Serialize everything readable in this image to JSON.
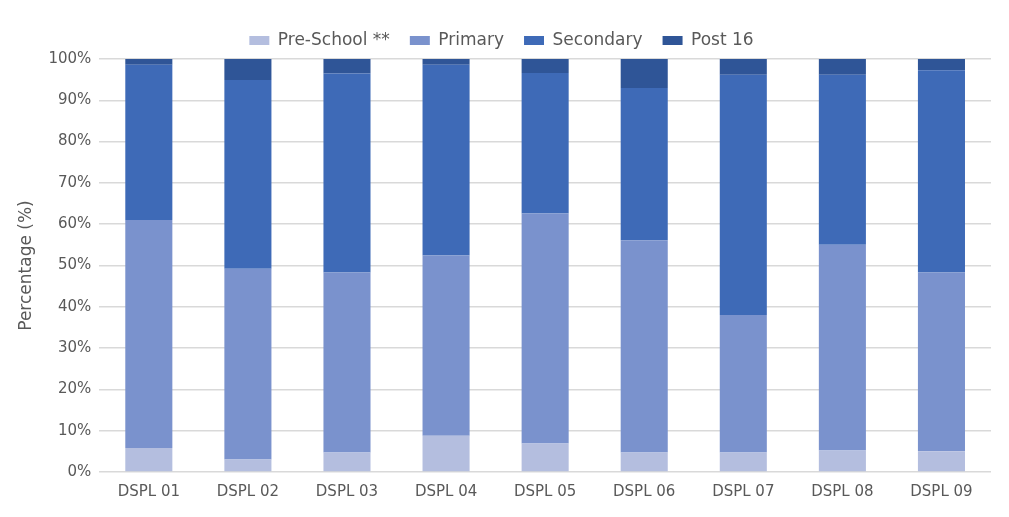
{
  "chart_data": {
    "type": "bar",
    "stacked": true,
    "ylabel": "Percentage (%)",
    "categories": [
      "DSPL 01",
      "DSPL 02",
      "DSPL 03",
      "DSPL 04",
      "DSPL 05",
      "DSPL 06",
      "DSPL 07",
      "DSPL 08",
      "DSPL 09"
    ],
    "series": [
      {
        "name": "Pre-School **",
        "color": "#b4bedf",
        "values": [
          5.8,
          3.0,
          4.7,
          8.8,
          6.9,
          4.7,
          4.7,
          5.2,
          5.0
        ]
      },
      {
        "name": "Primary",
        "color": "#7a92cd",
        "values": [
          55.2,
          46.2,
          43.6,
          43.6,
          55.7,
          51.4,
          33.3,
          49.8,
          43.3
        ]
      },
      {
        "name": "Secondary",
        "color": "#3e6ab7",
        "values": [
          37.6,
          45.7,
          48.2,
          46.2,
          34.0,
          36.9,
          58.2,
          41.2,
          49.0
        ]
      },
      {
        "name": "Post 16",
        "color": "#2f5597",
        "values": [
          1.4,
          5.1,
          3.5,
          1.4,
          3.4,
          7.0,
          3.8,
          3.8,
          2.7
        ]
      }
    ],
    "ylim": [
      0,
      100
    ],
    "yticks": [
      {
        "value": 0,
        "label": "0%"
      },
      {
        "value": 10,
        "label": "10%"
      },
      {
        "value": 20,
        "label": "20%"
      },
      {
        "value": 30,
        "label": "30%"
      },
      {
        "value": 40,
        "label": "40%"
      },
      {
        "value": 50,
        "label": "50%"
      },
      {
        "value": 60,
        "label": "60%"
      },
      {
        "value": 70,
        "label": "70%"
      },
      {
        "value": 80,
        "label": "80%"
      },
      {
        "value": 90,
        "label": "90%"
      },
      {
        "value": 100,
        "label": "100%"
      }
    ],
    "grid": "y",
    "legend": "top"
  }
}
